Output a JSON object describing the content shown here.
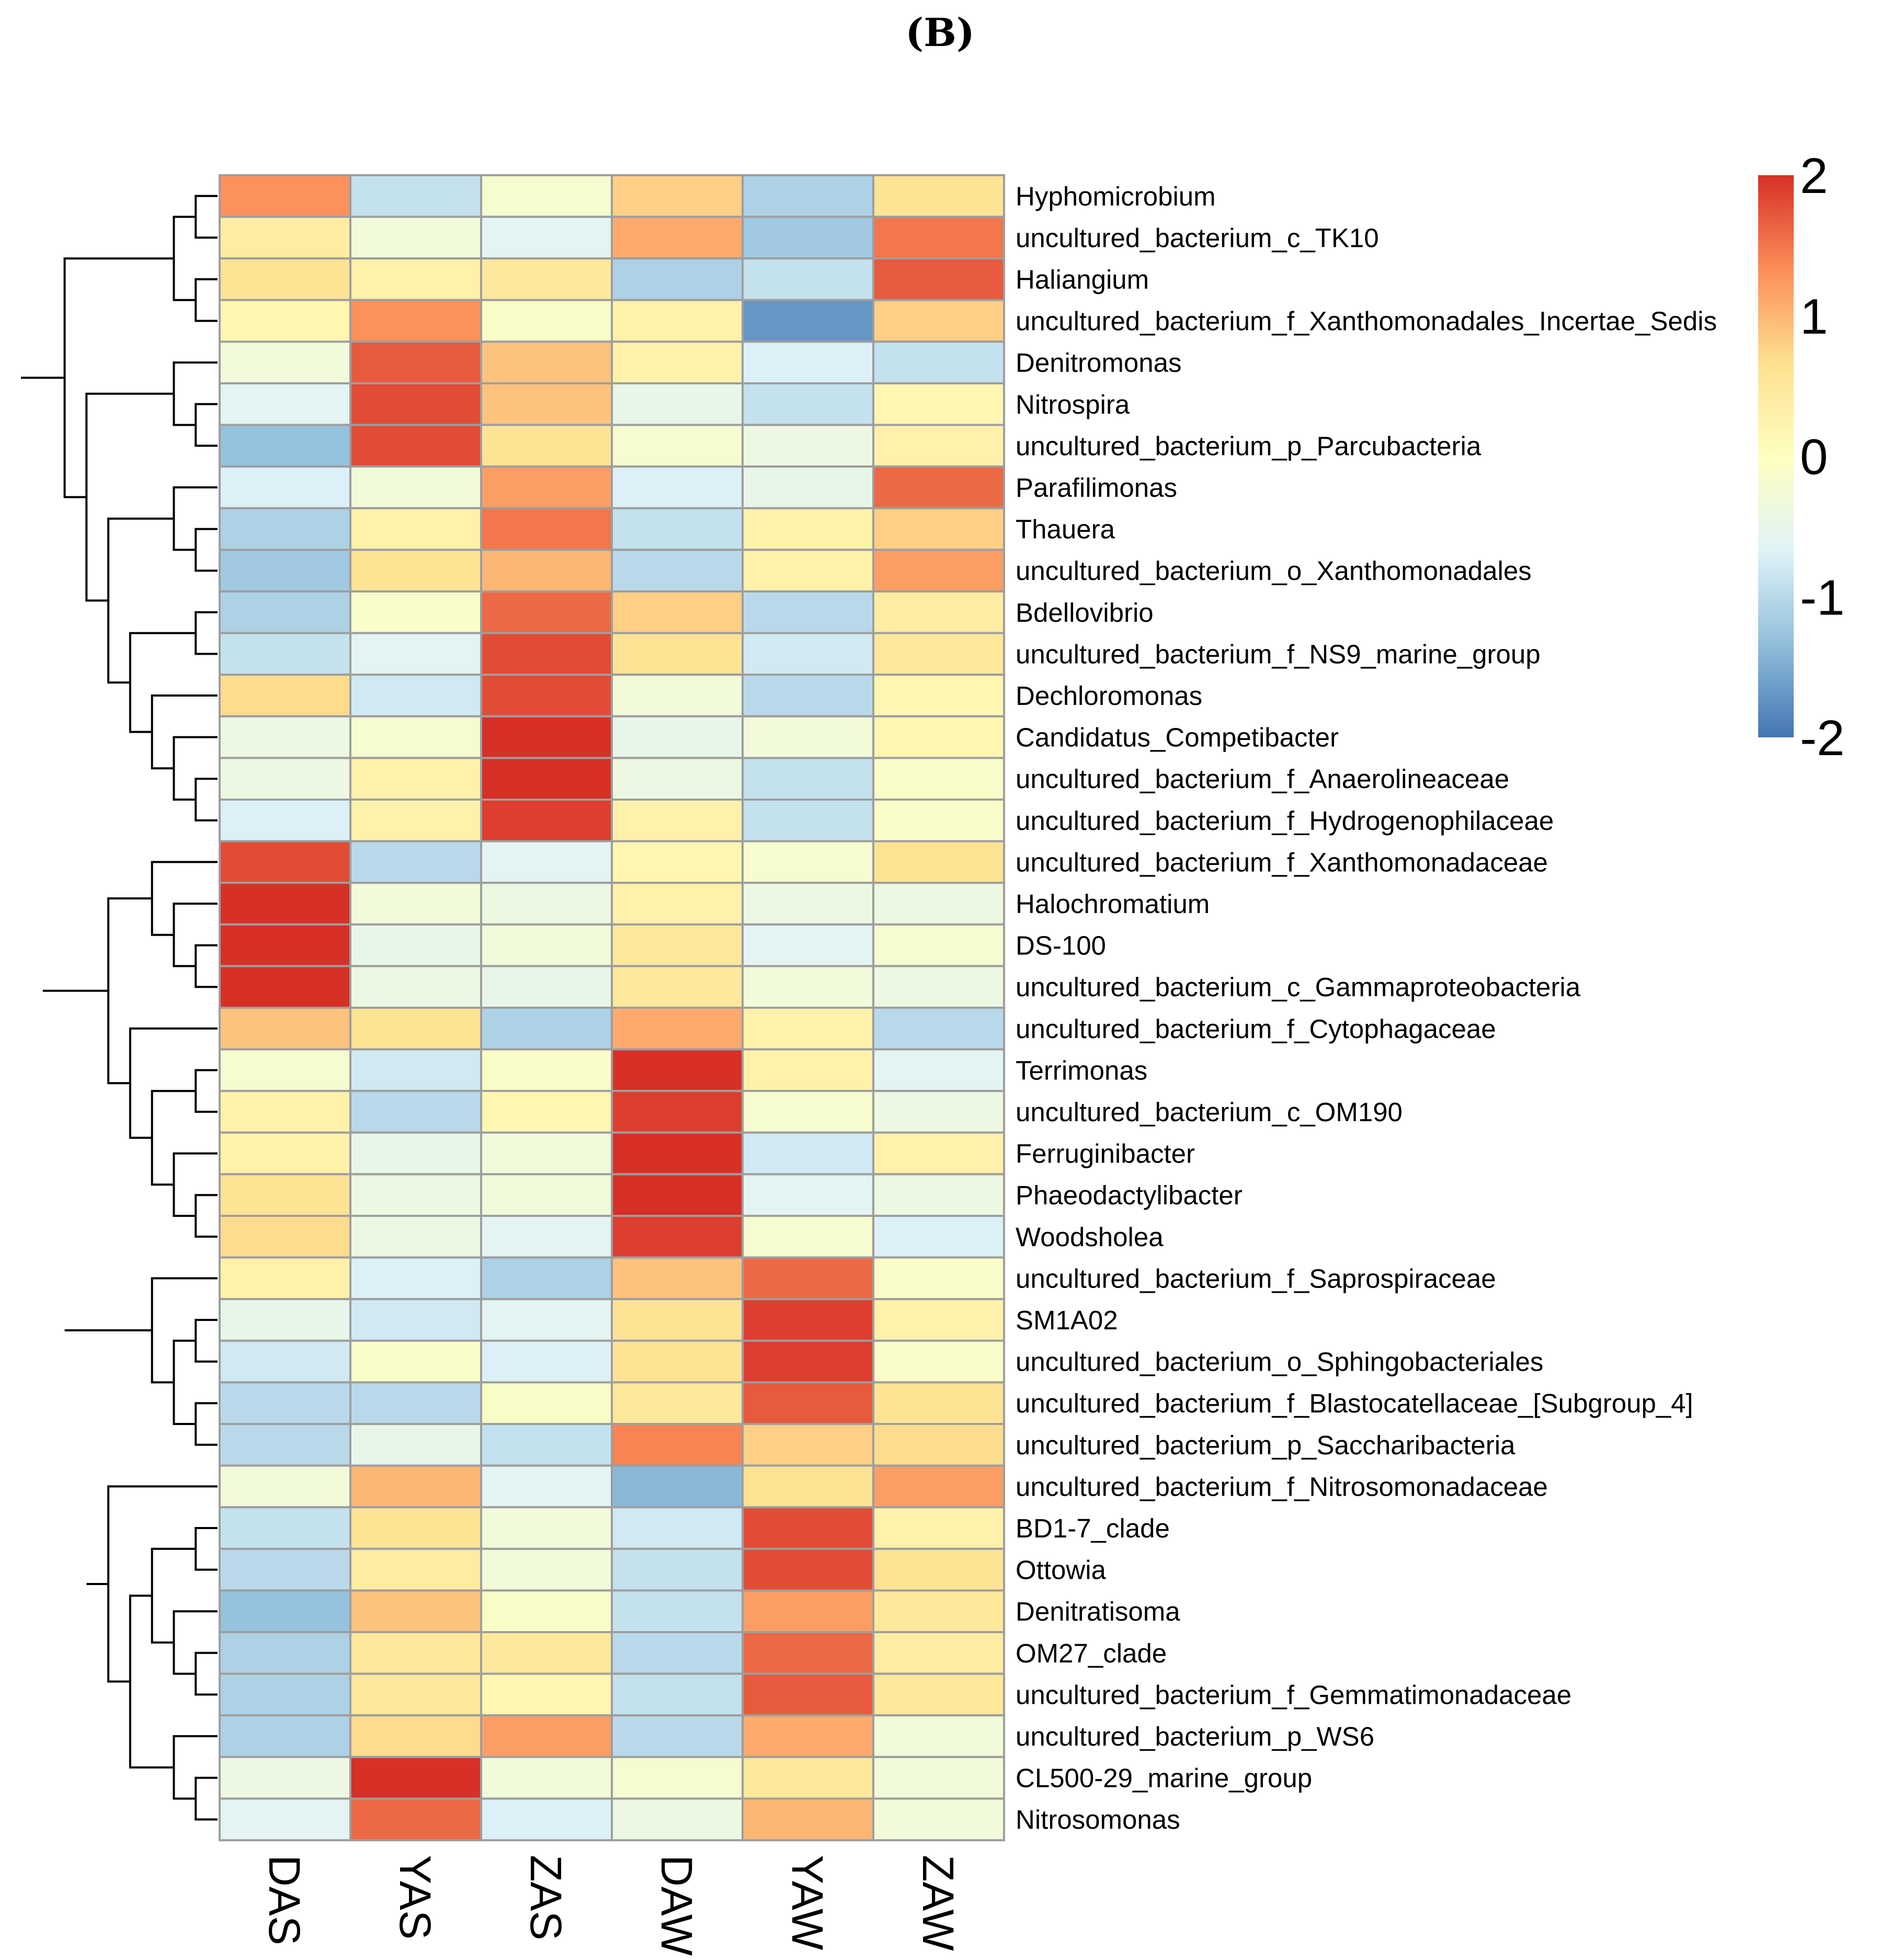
{
  "panel_label": "(B)",
  "chart_data": {
    "type": "heatmap",
    "columns": [
      "DAS",
      "YAS",
      "ZAS",
      "DAW",
      "YAW",
      "ZAW"
    ],
    "rows": [
      "Hyphomicrobium",
      "uncultured_bacterium_c_TK10",
      "Haliangium",
      "uncultured_bacterium_f_Xanthomonadales_Incertae_Sedis",
      "Denitromonas",
      "Nitrospira",
      "uncultured_bacterium_p_Parcubacteria",
      "Parafilimonas",
      "Thauera",
      "uncultured_bacterium_o_Xanthomonadales",
      "Bdellovibrio",
      "uncultured_bacterium_f_NS9_marine_group",
      "Dechloromonas",
      "Candidatus_Competibacter",
      "uncultured_bacterium_f_Anaerolineaceae",
      "uncultured_bacterium_f_Hydrogenophilaceae",
      "uncultured_bacterium_f_Xanthomonadaceae",
      "Halochromatium",
      "DS-100",
      "uncultured_bacterium_c_Gammaproteobacteria",
      "uncultured_bacterium_f_Cytophagaceae",
      "Terrimonas",
      "uncultured_bacterium_c_OM190",
      "Ferruginibacter",
      "Phaeodactylibacter",
      "Woodsholea",
      "uncultured_bacterium_f_Saprospiraceae",
      "SM1A02",
      "uncultured_bacterium_o_Sphingobacteriales",
      "uncultured_bacterium_f_Blastocatellaceae_[Subgroup_4]",
      "uncultured_bacterium_p_Saccharibacteria",
      "uncultured_bacterium_f_Nitrosomonadaceae",
      "BD1-7_clade",
      "Ottowia",
      "Denitratisoma",
      "OM27_clade",
      "uncultured_bacterium_f_Gemmatimonadaceae",
      "uncultured_bacterium_p_WS6",
      "CL500-29_marine_group",
      "Nitrosomonas"
    ],
    "values": [
      [
        1.3,
        -0.9,
        -0.2,
        0.8,
        -1.1,
        0.6
      ],
      [
        0.4,
        -0.3,
        -0.6,
        1.1,
        -1.2,
        1.5
      ],
      [
        0.6,
        0.3,
        0.5,
        -1.1,
        -0.9,
        1.7
      ],
      [
        0.2,
        1.3,
        -0.1,
        0.3,
        -1.7,
        0.8
      ],
      [
        -0.3,
        1.7,
        0.9,
        0.3,
        -0.7,
        -0.9
      ],
      [
        -0.6,
        1.8,
        0.9,
        -0.5,
        -0.9,
        0.2
      ],
      [
        -1.3,
        1.8,
        0.6,
        -0.2,
        -0.4,
        0.3
      ],
      [
        -0.7,
        -0.3,
        1.2,
        -0.7,
        -0.5,
        1.6
      ],
      [
        -1.1,
        0.3,
        1.5,
        -0.9,
        0.3,
        0.8
      ],
      [
        -1.2,
        0.6,
        1.0,
        -1.0,
        0.3,
        1.2
      ],
      [
        -1.1,
        -0.1,
        1.6,
        0.8,
        -1.0,
        0.4
      ],
      [
        -0.9,
        -0.6,
        1.8,
        0.6,
        -0.8,
        0.5
      ],
      [
        0.7,
        -0.8,
        1.8,
        -0.3,
        -1.0,
        0.2
      ],
      [
        -0.4,
        -0.2,
        2.0,
        -0.5,
        -0.3,
        0.2
      ],
      [
        -0.4,
        0.3,
        2.0,
        -0.4,
        -0.9,
        -0.1
      ],
      [
        -0.7,
        0.3,
        1.9,
        0.3,
        -0.9,
        -0.1
      ],
      [
        1.8,
        -1.0,
        -0.6,
        0.2,
        -0.2,
        0.6
      ],
      [
        2.0,
        -0.3,
        -0.4,
        0.3,
        -0.4,
        -0.4
      ],
      [
        2.0,
        -0.5,
        -0.3,
        0.5,
        -0.6,
        -0.2
      ],
      [
        2.0,
        -0.4,
        -0.5,
        0.5,
        -0.3,
        -0.4
      ],
      [
        0.9,
        0.6,
        -1.1,
        1.1,
        0.3,
        -1.0
      ],
      [
        -0.2,
        -0.8,
        -0.1,
        2.0,
        0.3,
        -0.6
      ],
      [
        0.3,
        -1.0,
        0.2,
        1.9,
        -0.2,
        -0.4
      ],
      [
        0.3,
        -0.5,
        -0.3,
        2.0,
        -0.8,
        0.3
      ],
      [
        0.6,
        -0.4,
        -0.3,
        2.0,
        -0.6,
        -0.4
      ],
      [
        0.7,
        -0.4,
        -0.6,
        1.9,
        -0.2,
        -0.7
      ],
      [
        0.3,
        -0.7,
        -1.1,
        0.9,
        1.6,
        -0.1
      ],
      [
        -0.5,
        -0.8,
        -0.6,
        0.6,
        1.9,
        0.3
      ],
      [
        -0.8,
        -0.1,
        -0.7,
        0.6,
        1.9,
        -0.1
      ],
      [
        -1.0,
        -1.0,
        -0.1,
        0.5,
        1.7,
        0.6
      ],
      [
        -1.0,
        -0.5,
        -0.9,
        1.4,
        0.8,
        0.7
      ],
      [
        -0.3,
        1.0,
        -0.6,
        -1.4,
        0.6,
        1.2
      ],
      [
        -0.9,
        0.6,
        -0.3,
        -0.8,
        1.8,
        0.3
      ],
      [
        -1.0,
        0.4,
        -0.3,
        -0.9,
        1.8,
        0.6
      ],
      [
        -1.3,
        0.9,
        -0.1,
        -0.9,
        1.2,
        0.5
      ],
      [
        -1.1,
        0.5,
        0.5,
        -1.0,
        1.6,
        0.4
      ],
      [
        -1.1,
        0.5,
        0.2,
        -0.9,
        1.7,
        0.5
      ],
      [
        -1.1,
        0.7,
        1.2,
        -1.0,
        1.1,
        -0.3
      ],
      [
        -0.4,
        2.0,
        -0.3,
        -0.2,
        0.5,
        -0.3
      ],
      [
        -0.6,
        1.6,
        -0.7,
        -0.4,
        1.0,
        -0.3
      ]
    ],
    "color_scale": {
      "min": -2,
      "max": 2,
      "ticks": [
        "2",
        "1",
        "0",
        "-1",
        "-2"
      ],
      "colors": [
        "#4575b4",
        "#91bfdb",
        "#e0f3f8",
        "#ffffbf",
        "#fee090",
        "#fc8d59",
        "#d73027"
      ]
    },
    "row_dendrogram": true,
    "column_labels_rotated": true
  }
}
